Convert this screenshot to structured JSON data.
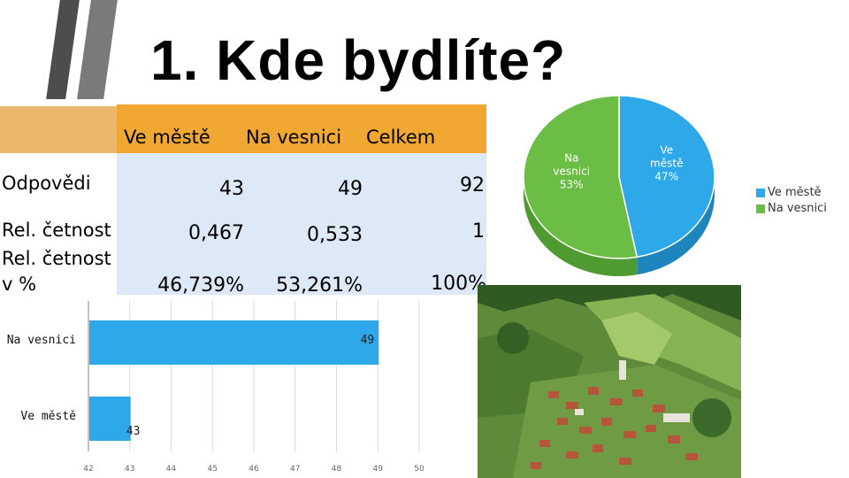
{
  "title": "1. Kde bydlíte?",
  "table": {
    "columns": [
      "Ve městě",
      "Na vesnici",
      "Celkem"
    ],
    "rows": [
      {
        "label": "Odpovědi",
        "values": [
          "43",
          "49",
          "92"
        ]
      },
      {
        "label": "Rel. četnost",
        "values": [
          "0,467",
          "0,533",
          "1"
        ]
      },
      {
        "label": "Rel. četnost v %",
        "values": [
          "46,739%",
          "53,261%",
          "100%"
        ]
      }
    ]
  },
  "chart_data": [
    {
      "type": "pie",
      "slices": [
        {
          "name": "Ve městě",
          "value": 47,
          "label": "Ve městě 47%",
          "color": "#2ea8e8"
        },
        {
          "name": "Na vesnici",
          "value": 53,
          "label": "Na vesnici 53%",
          "color": "#6cbd45"
        }
      ],
      "legend": [
        "Ve městě",
        "Na vesnici"
      ],
      "legend_position": "right"
    },
    {
      "type": "bar",
      "orientation": "horizontal",
      "categories": [
        "Na vesnici",
        "Ve městě"
      ],
      "values": [
        49,
        43
      ],
      "data_labels": [
        "49",
        "43"
      ],
      "xlim": [
        42,
        50
      ],
      "ticks": [
        "42",
        "43",
        "44",
        "45",
        "46",
        "47",
        "48",
        "49",
        "50"
      ],
      "color": "#2ea8e8",
      "grid": true
    }
  ]
}
